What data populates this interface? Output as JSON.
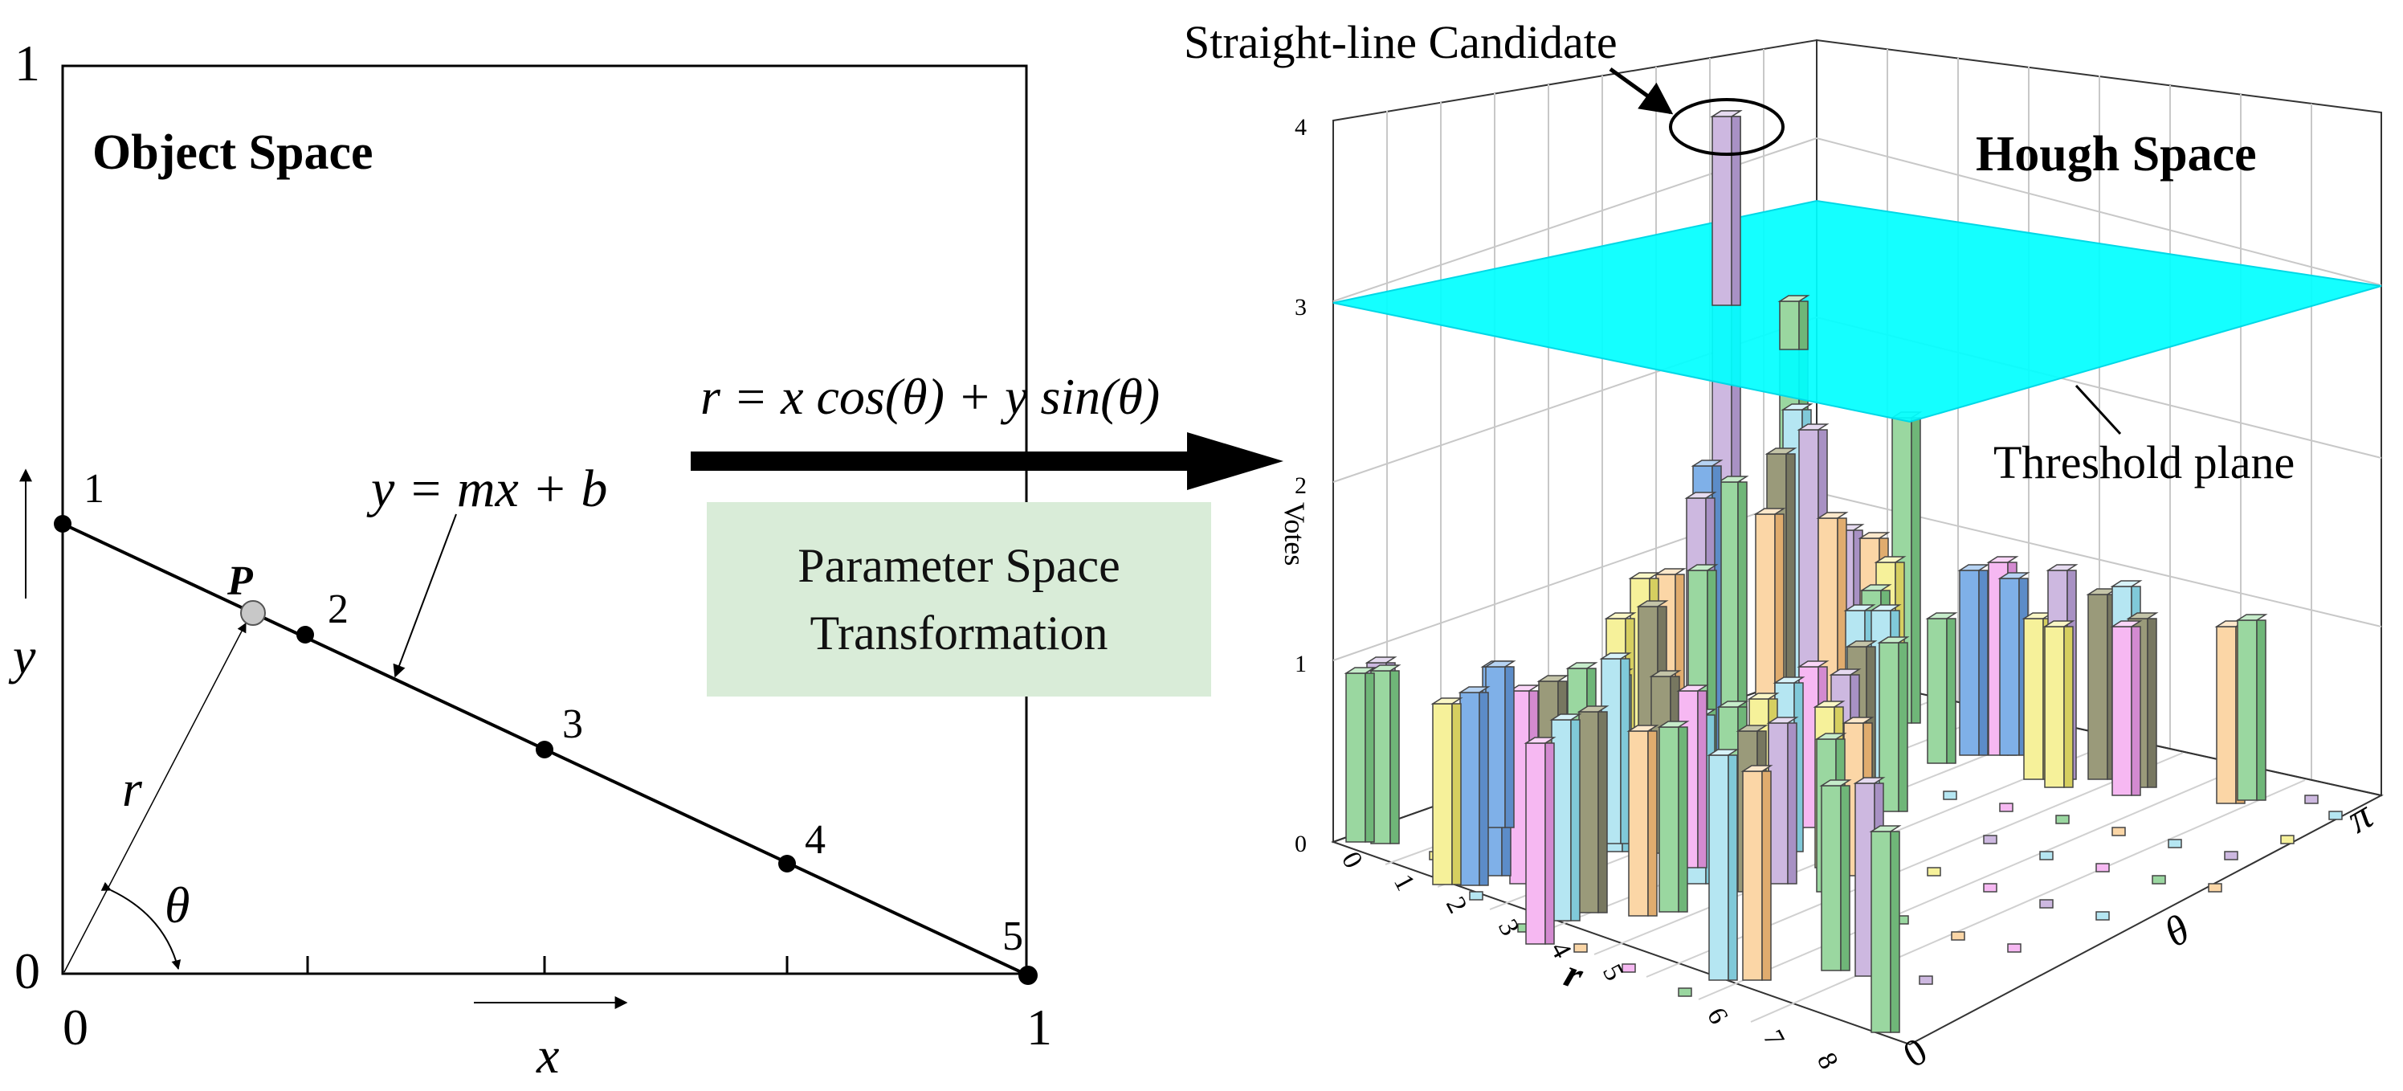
{
  "object_space": {
    "title": "Object Space",
    "axis_x_label": "x",
    "axis_y_label": "y",
    "origin_label": "0",
    "x_tick_0": "0",
    "x_tick_1": "1",
    "y_tick_1": "1",
    "line_equation": "y = mx + b",
    "point_label": "P",
    "radius_label": "r",
    "angle_label": "θ",
    "points": [
      {
        "label": "1",
        "x": 0.0,
        "y": 0.5
      },
      {
        "label": "2",
        "x": 0.25,
        "y": 0.375
      },
      {
        "label": "3",
        "x": 0.5,
        "y": 0.25
      },
      {
        "label": "4",
        "x": 0.75,
        "y": 0.125
      },
      {
        "label": "5",
        "x": 1.0,
        "y": 0.0
      }
    ]
  },
  "transform": {
    "equation": "r = x cos(θ) + y sin(θ)",
    "box_line1": "Parameter Space",
    "box_line2": "Transformation",
    "box_color": "#d9ecd8"
  },
  "hough_space": {
    "title": "Hough Space",
    "candidate_label": "Straight-line Candidate",
    "threshold_label": "Threshold plane",
    "z_axis_label": "Votes",
    "r_axis_label": "r",
    "theta_axis_label": "θ",
    "theta_end_label": "π",
    "theta_start_label": "0",
    "r_ticks": [
      "0",
      "1",
      "2",
      "3",
      "4",
      "5",
      "6",
      "7",
      "8"
    ],
    "z_ticks": [
      "0",
      "1",
      "2",
      "3",
      "4"
    ],
    "threshold_value": 3,
    "plane_color": "#00ffff"
  }
}
